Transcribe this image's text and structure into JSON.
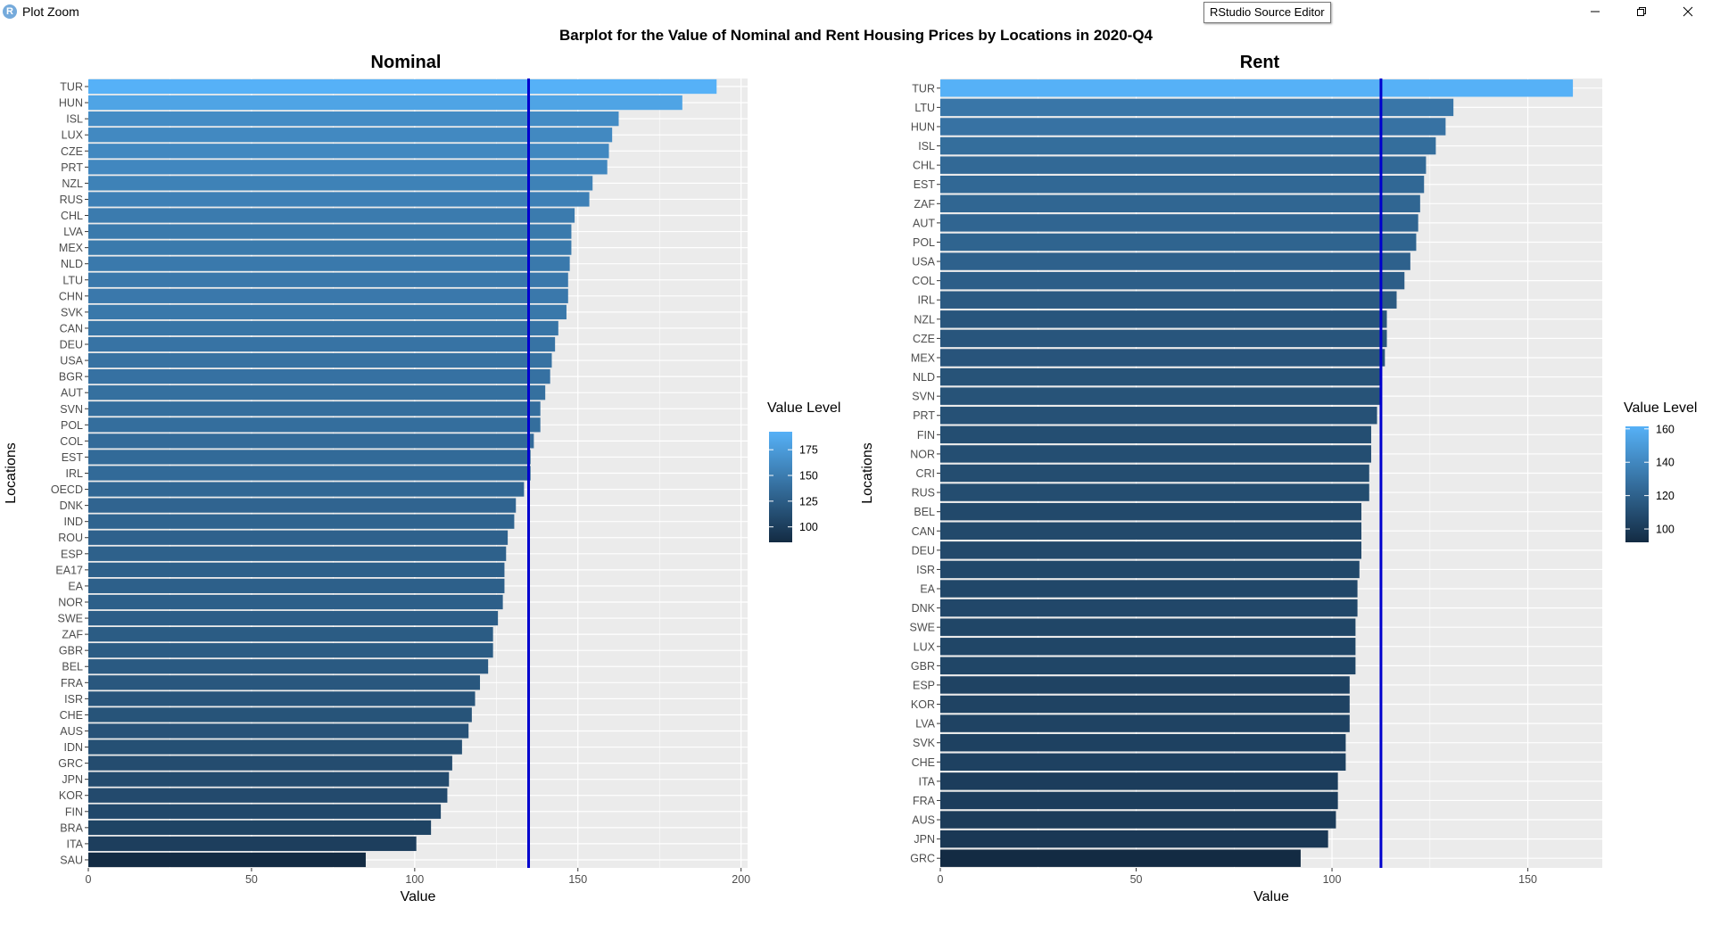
{
  "window": {
    "title": "Plot Zoom",
    "app_icon": "rstudio-icon",
    "tooltip": "RStudio Source Editor",
    "controls": [
      "minimize-icon",
      "restore-icon",
      "close-icon"
    ]
  },
  "main_title": "Barplot for the Value of Nominal and Rent Housing Prices by Locations in 2020-Q4",
  "colors": {
    "panel_bg": "#ebebeb",
    "grid": "#ffffff",
    "ref_line": "#0000cd",
    "low": "#132b43",
    "high": "#56b1f7"
  },
  "chart_data": [
    {
      "type": "bar",
      "orientation": "horizontal",
      "title": "Nominal",
      "xlabel": "Value",
      "ylabel": "Locations",
      "xlim": [
        0,
        202
      ],
      "xticks": [
        0,
        50,
        100,
        150,
        200
      ],
      "reference_line": 134.9,
      "legend": {
        "title": "Value Level",
        "ticks": [
          100,
          125,
          150,
          175
        ],
        "range": [
          85,
          192.5
        ],
        "placement": "right"
      },
      "categories": [
        "TUR",
        "HUN",
        "ISL",
        "LUX",
        "CZE",
        "PRT",
        "NZL",
        "RUS",
        "CHL",
        "LVA",
        "MEX",
        "NLD",
        "LTU",
        "CHN",
        "SVK",
        "CAN",
        "DEU",
        "USA",
        "BGR",
        "AUT",
        "SVN",
        "POL",
        "COL",
        "EST",
        "IRL",
        "OECD",
        "DNK",
        "IND",
        "ROU",
        "ESP",
        "EA17",
        "EA",
        "NOR",
        "SWE",
        "ZAF",
        "GBR",
        "BEL",
        "FRA",
        "ISR",
        "CHE",
        "AUS",
        "IDN",
        "GRC",
        "JPN",
        "KOR",
        "FIN",
        "BRA",
        "ITA",
        "SAU"
      ],
      "values": [
        192.5,
        182,
        162.5,
        160.5,
        159.5,
        159,
        154.5,
        153.5,
        149,
        148,
        148,
        147.5,
        147,
        147,
        146.5,
        144,
        143,
        142,
        141.5,
        140,
        138.5,
        138.5,
        136.5,
        135.5,
        135.5,
        133.5,
        131,
        130.5,
        128.5,
        128,
        127.5,
        127.5,
        127,
        125.5,
        124,
        124,
        122.5,
        120,
        118.5,
        117.5,
        116.5,
        114.5,
        111.5,
        110.5,
        110,
        108,
        105,
        100.5,
        85
      ]
    },
    {
      "type": "bar",
      "orientation": "horizontal",
      "title": "Rent",
      "xlabel": "Value",
      "ylabel": "Locations",
      "xlim": [
        0,
        169
      ],
      "xticks": [
        0,
        50,
        100,
        150
      ],
      "reference_line": 112.5,
      "legend": {
        "title": "Value Level",
        "ticks": [
          100,
          120,
          140,
          160
        ],
        "range": [
          92,
          161.5
        ],
        "placement": "right"
      },
      "categories": [
        "TUR",
        "LTU",
        "HUN",
        "ISL",
        "CHL",
        "EST",
        "ZAF",
        "AUT",
        "POL",
        "USA",
        "COL",
        "IRL",
        "NZL",
        "CZE",
        "MEX",
        "NLD",
        "SVN",
        "PRT",
        "FIN",
        "NOR",
        "CRI",
        "RUS",
        "BEL",
        "CAN",
        "DEU",
        "ISR",
        "EA",
        "DNK",
        "SWE",
        "LUX",
        "GBR",
        "ESP",
        "KOR",
        "LVA",
        "SVK",
        "CHE",
        "ITA",
        "FRA",
        "AUS",
        "JPN",
        "GRC"
      ],
      "values": [
        161.5,
        131,
        129,
        126.5,
        124,
        123.5,
        122.5,
        122,
        121.5,
        120,
        118.5,
        116.5,
        114,
        114,
        113.5,
        112.5,
        112.5,
        111.5,
        110,
        110,
        109.5,
        109.5,
        107.5,
        107.5,
        107.5,
        107,
        106.5,
        106.5,
        106,
        106,
        106,
        104.5,
        104.5,
        104.5,
        103.5,
        103.5,
        101.5,
        101.5,
        101,
        99,
        92
      ]
    }
  ]
}
